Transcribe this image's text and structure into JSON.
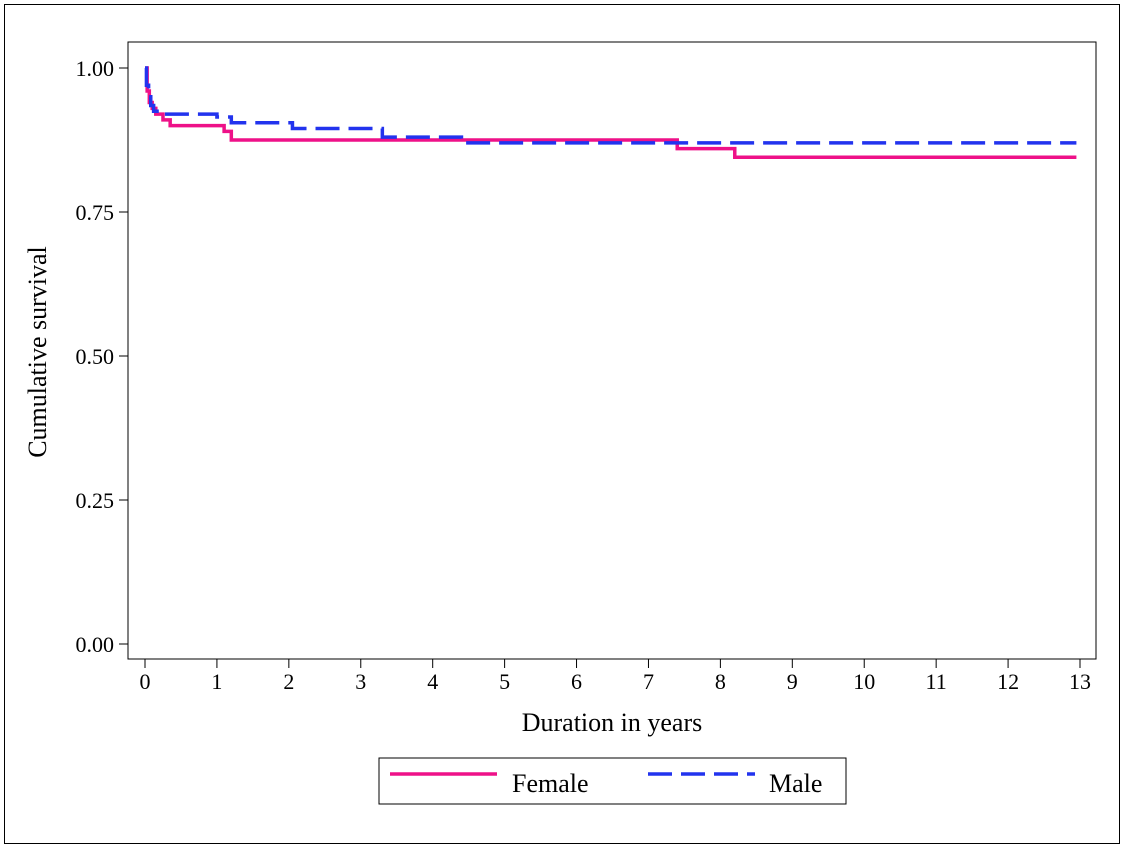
{
  "chart_data": {
    "type": "line",
    "step": true,
    "xlabel": "Duration in years",
    "ylabel": "Cumulative survival",
    "xlim": [
      0,
      13
    ],
    "ylim": [
      0,
      1
    ],
    "x_ticks": [
      0,
      1,
      2,
      3,
      4,
      5,
      6,
      7,
      8,
      9,
      10,
      11,
      12,
      13
    ],
    "y_ticks": [
      0,
      0.25,
      0.5,
      0.75,
      1
    ],
    "y_tick_labels": [
      "0.00",
      "0.25",
      "0.50",
      "0.75",
      "1.00"
    ],
    "grid": false,
    "legend_position": "bottom-center",
    "series": [
      {
        "name": "Female",
        "color": "#ee1188",
        "dash": "solid",
        "x": [
          0,
          0.03,
          0.06,
          0.1,
          0.15,
          0.25,
          0.35,
          1.1,
          1.2,
          4.4,
          7.4,
          8.2,
          12.95
        ],
        "y": [
          1.0,
          0.96,
          0.94,
          0.93,
          0.92,
          0.91,
          0.9,
          0.89,
          0.875,
          0.875,
          0.86,
          0.845,
          0.845
        ]
      },
      {
        "name": "Male",
        "color": "#2233ee",
        "dash": "dashed",
        "x": [
          0,
          0.02,
          0.05,
          0.08,
          0.12,
          0.2,
          1.0,
          1.2,
          2.05,
          3.3,
          4.4,
          7.4,
          12.95
        ],
        "y": [
          1.0,
          0.97,
          0.95,
          0.935,
          0.925,
          0.92,
          0.915,
          0.905,
          0.895,
          0.88,
          0.87,
          0.87,
          0.87
        ]
      }
    ]
  }
}
